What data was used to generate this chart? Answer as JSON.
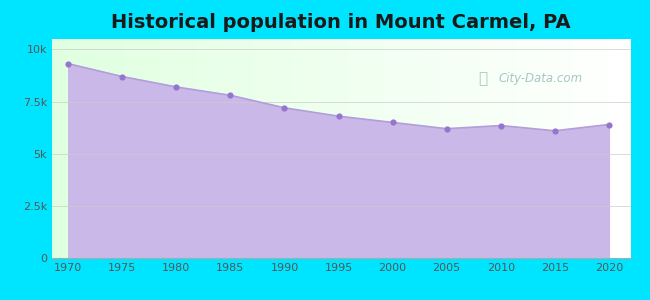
{
  "title": "Historical population in Mount Carmel, PA",
  "years": [
    1970,
    1975,
    1980,
    1985,
    1990,
    1995,
    2000,
    2005,
    2010,
    2015,
    2020
  ],
  "population": [
    9317,
    8700,
    8200,
    7800,
    7200,
    6800,
    6500,
    6200,
    6350,
    6100,
    6400
  ],
  "line_color": "#b39ddb",
  "fill_color": "#c9b8e8",
  "fill_alpha": 1.0,
  "marker_color": "#9575cd",
  "bg_outer": "#00e5ff",
  "title_color": "#1a1a1a",
  "title_fontsize": 14,
  "ytick_labels": [
    "0",
    "2.5k",
    "5k",
    "7.5k",
    "10k"
  ],
  "ytick_values": [
    0,
    2500,
    5000,
    7500,
    10000
  ],
  "ylim": [
    0,
    10500
  ],
  "xlim": [
    1968.5,
    2022
  ],
  "watermark": "City-Data.com"
}
